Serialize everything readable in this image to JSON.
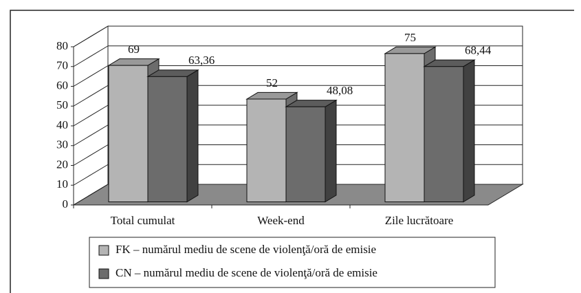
{
  "chart_data": {
    "type": "bar3d",
    "categories": [
      "Total cumulat",
      "Week-end",
      "Zile lucrătoare"
    ],
    "series": [
      {
        "name": "FK – numărul mediu de scene de violenţă/oră de emisie",
        "color": "#b4b4b4",
        "values": [
          69,
          52,
          75
        ]
      },
      {
        "name": "CN – numărul mediu de scene de violenţă/oră de emisie",
        "color": "#6c6c6c",
        "values": [
          63.36,
          48.08,
          68.44
        ],
        "value_labels": [
          "63,36",
          "48,08",
          "68,44"
        ]
      }
    ],
    "ylim": [
      0,
      80
    ],
    "yticks": [
      0,
      10,
      20,
      30,
      40,
      50,
      60,
      70,
      80
    ],
    "grid": true,
    "legend": "bottom"
  }
}
